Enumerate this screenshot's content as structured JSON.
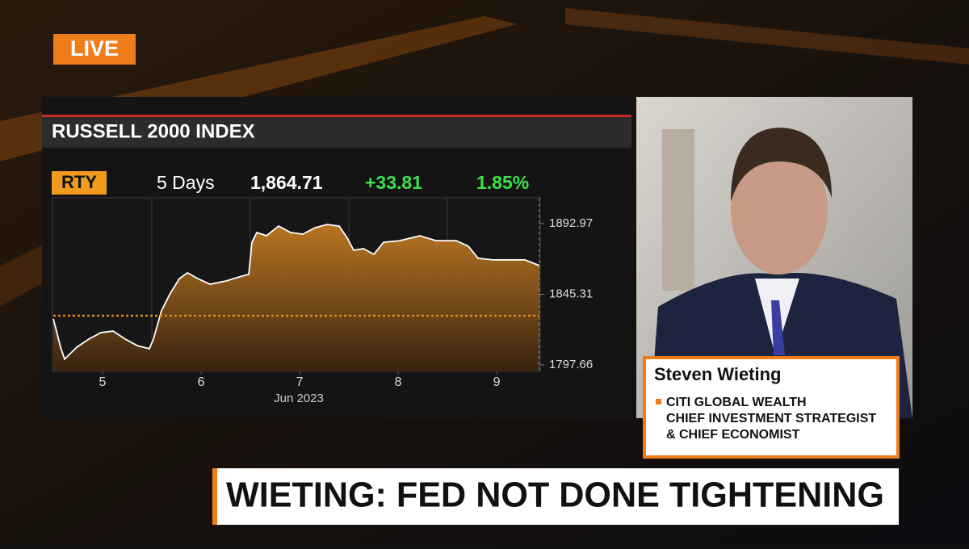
{
  "live_badge": "LIVE",
  "chart_data": {
    "type": "area",
    "title": "RUSSELL 2000 INDEX",
    "ticker": "RTY",
    "period": "5 Days",
    "last": "1,864.71",
    "change": "+33.81",
    "change_pct": "1.85%",
    "x_label": "Jun 2023",
    "x": [
      4.5,
      4.533,
      4.574,
      4.615,
      4.656,
      4.738,
      4.861,
      4.984,
      5.107,
      5.23,
      5.352,
      5.475,
      5.516,
      5.598,
      5.68,
      5.779,
      5.861,
      5.967,
      6.09,
      6.254,
      6.418,
      6.484,
      6.516,
      6.566,
      6.664,
      6.787,
      6.91,
      7.033,
      7.156,
      7.279,
      7.402,
      7.484,
      7.549,
      7.648,
      7.754,
      7.852,
      8.016,
      8.221,
      8.385,
      8.59,
      8.713,
      8.811,
      8.959,
      9.123,
      9.287,
      9.434
    ],
    "series": [
      {
        "color": "#e08a1e",
        "values": [
          1828.7,
          1820.5,
          1809.6,
          1801.5,
          1804.2,
          1809.6,
          1815.1,
          1819.5,
          1820.5,
          1815.1,
          1810.7,
          1808.6,
          1815.1,
          1834.2,
          1845.1,
          1855.9,
          1859.8,
          1855.9,
          1852.1,
          1854.3,
          1857.6,
          1858.7,
          1880.4,
          1887.0,
          1884.8,
          1891.3,
          1887.0,
          1885.9,
          1890.2,
          1892.4,
          1891.3,
          1883.2,
          1875.0,
          1876.1,
          1872.3,
          1880.4,
          1881.5,
          1884.8,
          1881.5,
          1881.5,
          1877.7,
          1869.6,
          1868.5,
          1868.5,
          1868.5,
          1864.7
        ]
      }
    ],
    "prev_close": 1830.9,
    "xlim": [
      4.5,
      9.434
    ],
    "xticks": [
      5,
      6,
      7,
      8,
      9
    ],
    "ylim": [
      1793.3,
      1910.4
    ],
    "yticks": [
      1797.66,
      1845.31,
      1892.97
    ]
  },
  "guest": {
    "name": "Steven Wieting",
    "lines": [
      "CITI GLOBAL WEALTH",
      "CHIEF INVESTMENT STRATEGIST",
      "& CHIEF ECONOMIST"
    ]
  },
  "headline": "WIETING: FED NOT DONE TIGHTENING"
}
